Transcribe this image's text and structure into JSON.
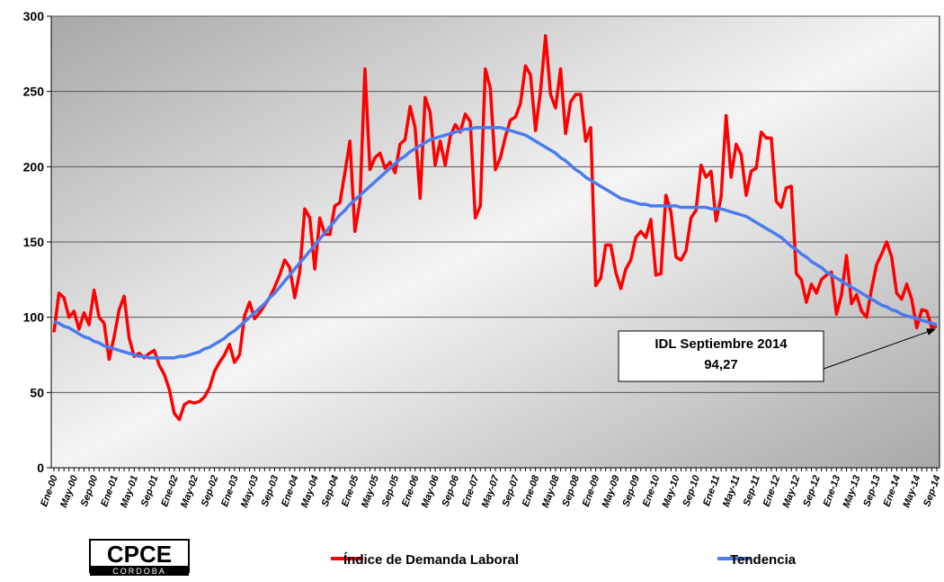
{
  "chart_data": {
    "type": "line",
    "categories": [
      "Ene-00",
      null,
      null,
      null,
      "May-00",
      null,
      null,
      null,
      "Sep-00",
      null,
      null,
      null,
      "Ene-01",
      null,
      null,
      null,
      "May-01",
      null,
      null,
      null,
      "Sep-01",
      null,
      null,
      null,
      "Ene-02",
      null,
      null,
      null,
      "May-02",
      null,
      null,
      null,
      "Sep-02",
      null,
      null,
      null,
      "Ene-03",
      null,
      null,
      null,
      "May-03",
      null,
      null,
      null,
      "Sep-03",
      null,
      null,
      null,
      "Ene-04",
      null,
      null,
      null,
      "May-04",
      null,
      null,
      null,
      "Sep-04",
      null,
      null,
      null,
      "Ene-05",
      null,
      null,
      null,
      "May-05",
      null,
      null,
      null,
      "Sep-05",
      null,
      null,
      null,
      "Ene-06",
      null,
      null,
      null,
      "May-06",
      null,
      null,
      null,
      "Sep-06",
      null,
      null,
      null,
      "Ene-07",
      null,
      null,
      null,
      "May-07",
      null,
      null,
      null,
      "Sep-07",
      null,
      null,
      null,
      "Ene-08",
      null,
      null,
      null,
      "May-08",
      null,
      null,
      null,
      "Sep-08",
      null,
      null,
      null,
      "Ene-09",
      null,
      null,
      null,
      "May-09",
      null,
      null,
      null,
      "Sep-09",
      null,
      null,
      null,
      "Ene-10",
      null,
      null,
      null,
      "May-10",
      null,
      null,
      null,
      "Sep-10",
      null,
      null,
      null,
      "Ene-11",
      null,
      null,
      null,
      "May-11",
      null,
      null,
      null,
      "Sep-11",
      null,
      null,
      null,
      "Ene-12",
      null,
      null,
      null,
      "May-12",
      null,
      null,
      null,
      "Sep-12",
      null,
      null,
      null,
      "Ene-13",
      null,
      null,
      null,
      "May-13",
      null,
      null,
      null,
      "Sep-13",
      null,
      null,
      null,
      "Ene-14",
      null,
      null,
      null,
      "May-14",
      null,
      null,
      null,
      "Sep-14"
    ],
    "series": [
      {
        "name": "Índice de Demanda Laboral",
        "color": "#ff0000",
        "values": [
          90,
          116,
          113,
          100,
          104,
          92,
          103,
          95,
          118,
          100,
          96,
          72,
          87,
          105,
          114,
          86,
          74,
          76,
          73,
          76,
          78,
          68,
          62,
          52,
          36,
          32,
          42,
          44,
          43,
          44,
          47,
          53,
          64,
          70,
          75,
          82,
          70,
          75,
          101,
          110,
          99,
          103,
          108,
          113,
          120,
          128,
          138,
          133,
          113,
          130,
          172,
          166,
          132,
          166,
          155,
          155,
          174,
          176,
          196,
          217,
          157,
          177,
          265,
          198,
          206,
          209,
          199,
          203,
          196,
          215,
          218,
          240,
          226,
          179,
          246,
          236,
          201,
          217,
          201,
          220,
          228,
          223,
          235,
          230,
          166,
          174,
          265,
          252,
          198,
          206,
          220,
          231,
          233,
          242,
          267,
          261,
          224,
          250,
          287,
          248,
          239,
          265,
          222,
          243,
          248,
          248,
          217,
          226,
          121,
          126,
          148,
          148,
          130,
          119,
          132,
          138,
          153,
          157,
          153,
          165,
          128,
          129,
          181,
          170,
          140,
          138,
          144,
          166,
          171,
          201,
          193,
          197,
          164,
          180,
          234,
          193,
          215,
          208,
          181,
          197,
          199,
          223,
          219,
          219,
          177,
          173,
          186,
          187,
          129,
          125,
          110,
          122,
          116,
          125,
          128,
          130,
          102,
          115,
          141,
          109,
          115,
          104,
          100,
          119,
          135,
          142,
          150,
          140,
          116,
          112,
          122,
          112,
          93,
          105,
          104,
          93,
          94.27
        ]
      },
      {
        "name": "Tendencia",
        "color": "#4a7bef",
        "values": [
          97,
          96,
          94,
          93,
          91,
          89,
          87,
          86,
          84,
          83,
          81,
          80,
          79,
          78,
          77,
          76,
          75,
          74,
          74,
          73,
          73,
          73,
          73,
          73,
          73,
          74,
          74,
          75,
          76,
          77,
          79,
          80,
          82,
          84,
          86,
          89,
          91,
          94,
          97,
          100,
          103,
          106,
          109,
          113,
          116,
          120,
          124,
          128,
          132,
          136,
          140,
          144,
          148,
          152,
          156,
          160,
          164,
          168,
          171,
          175,
          178,
          181,
          184,
          187,
          190,
          193,
          196,
          199,
          202,
          205,
          207,
          210,
          212,
          214,
          216,
          218,
          219,
          220,
          221,
          222,
          223,
          224,
          225,
          225,
          226,
          226,
          226,
          226,
          226,
          226,
          225,
          224,
          223,
          222,
          221,
          219,
          217,
          215,
          213,
          211,
          209,
          206,
          204,
          201,
          198,
          196,
          193,
          191,
          189,
          187,
          185,
          183,
          181,
          179,
          178,
          177,
          176,
          175,
          175,
          174,
          174,
          174,
          174,
          174,
          174,
          173,
          173,
          173,
          173,
          173,
          173,
          172,
          172,
          172,
          171,
          170,
          169,
          168,
          167,
          165,
          163,
          161,
          159,
          157,
          155,
          153,
          150,
          147,
          145,
          142,
          140,
          137,
          135,
          133,
          130,
          128,
          126,
          124,
          122,
          120,
          118,
          116,
          114,
          112,
          110,
          108,
          107,
          105,
          104,
          102,
          101,
          100,
          99,
          98,
          97,
          96,
          95
        ]
      }
    ],
    "ylim": [
      0,
      300
    ],
    "yticks": [
      0,
      50,
      100,
      150,
      200,
      250,
      300
    ],
    "grid": true,
    "annotation": {
      "title": "IDL Septiembre 2014",
      "value_label": "94,27"
    },
    "logo": {
      "text": "CPCE",
      "subtext": "CORDOBA"
    }
  }
}
